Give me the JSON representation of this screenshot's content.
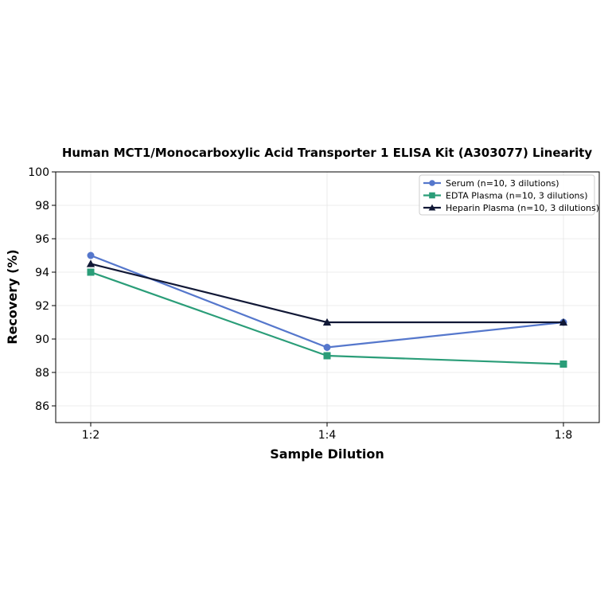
{
  "chart_data": {
    "type": "line",
    "title": "Human MCT1/Monocarboxylic Acid Transporter 1 ELISA Kit (A303077) Linearity",
    "xlabel": "Sample Dilution",
    "ylabel": "Recovery (%)",
    "categories": [
      "1:2",
      "1:4",
      "1:8"
    ],
    "ylim": [
      85,
      100
    ],
    "yticks": [
      86,
      88,
      90,
      92,
      94,
      96,
      98,
      100
    ],
    "grid": true,
    "legend_position": "top-right",
    "series": [
      {
        "name": "Serum (n=10, 3 dilutions)",
        "values": [
          95.0,
          89.5,
          91.0
        ],
        "color": "#5577cc",
        "marker": "circle"
      },
      {
        "name": "EDTA Plasma (n=10, 3 dilutions)",
        "values": [
          94.0,
          89.0,
          88.5
        ],
        "color": "#2a9d78",
        "marker": "square"
      },
      {
        "name": "Heparin Plasma (n=10, 3 dilutions)",
        "values": [
          94.5,
          91.0,
          91.0
        ],
        "color": "#111836",
        "marker": "triangle"
      }
    ]
  }
}
